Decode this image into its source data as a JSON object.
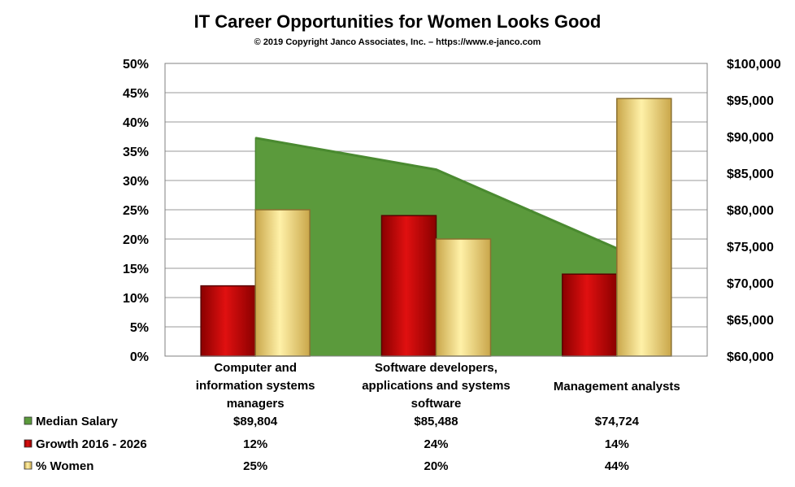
{
  "chart_data": {
    "type": "bar",
    "title": "IT Career Opportunities for Women Looks Good",
    "subtitle": "© 2019 Copyright Janco Associates, Inc. – https://www.e-janco.com",
    "categories": [
      [
        "Computer and",
        "information systems",
        "managers"
      ],
      [
        "Software developers,",
        "applications and systems",
        "software"
      ],
      [
        "Management analysts"
      ]
    ],
    "y_left": {
      "min": 0,
      "max": 0.5,
      "step": 0.05,
      "ticks": [
        "0%",
        "5%",
        "10%",
        "15%",
        "20%",
        "25%",
        "30%",
        "35%",
        "40%",
        "45%",
        "50%"
      ]
    },
    "y_right": {
      "min": 60000,
      "max": 100000,
      "step": 5000,
      "ticks": [
        "$60,000",
        "$65,000",
        "$70,000",
        "$75,000",
        "$80,000",
        "$85,000",
        "$90,000",
        "$95,000",
        "$100,000"
      ]
    },
    "series": [
      {
        "name": "Median Salary",
        "type": "area",
        "axis": "right",
        "color": "#5b9a3c",
        "values": [
          89804,
          85488,
          74724
        ],
        "labels": [
          "$89,804",
          "$85,488",
          "$74,724"
        ]
      },
      {
        "name": "Growth 2016 - 2026",
        "type": "bar",
        "axis": "left",
        "color": "#cc0000",
        "values": [
          0.12,
          0.24,
          0.14
        ],
        "labels": [
          "12%",
          "24%",
          "14%"
        ]
      },
      {
        "name": "% Women",
        "type": "bar",
        "axis": "left",
        "color": "#ffe070",
        "values": [
          0.25,
          0.2,
          0.44
        ],
        "labels": [
          "25%",
          "20%",
          "44%"
        ]
      }
    ],
    "grid": true,
    "legend": "data-table-below"
  }
}
